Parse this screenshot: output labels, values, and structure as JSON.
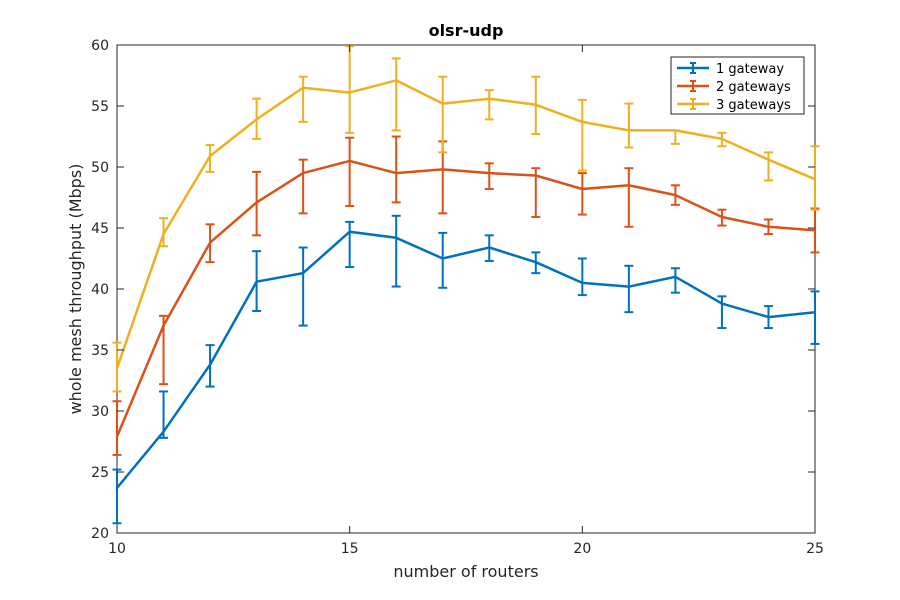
{
  "chart_data": {
    "type": "line",
    "title": "olsr-udp",
    "xlabel": "number of routers",
    "ylabel": "whole mesh throughput (Mbps)",
    "xlim": [
      10,
      25
    ],
    "ylim": [
      20,
      60
    ],
    "xticks": [
      10,
      15,
      20,
      25
    ],
    "yticks": [
      20,
      25,
      30,
      35,
      40,
      45,
      50,
      55,
      60
    ],
    "grid": false,
    "legend_position": "top-right",
    "x": [
      10,
      11,
      12,
      13,
      14,
      15,
      16,
      17,
      18,
      19,
      20,
      21,
      22,
      23,
      24,
      25
    ],
    "series": [
      {
        "name": "1 gateway",
        "color": "#0072BD",
        "values": [
          23.7,
          28.3,
          33.8,
          40.6,
          41.3,
          44.7,
          44.2,
          42.5,
          43.4,
          42.2,
          40.5,
          40.2,
          41.0,
          38.8,
          37.7,
          38.1
        ],
        "err_low": [
          20.8,
          27.8,
          32.0,
          38.2,
          37.0,
          41.8,
          40.2,
          40.1,
          42.3,
          41.3,
          39.5,
          38.1,
          39.7,
          36.8,
          36.8,
          35.5
        ],
        "err_high": [
          25.2,
          31.6,
          35.4,
          43.1,
          43.4,
          45.5,
          46.0,
          44.6,
          44.4,
          43.0,
          42.5,
          41.9,
          41.7,
          39.4,
          38.6,
          39.8
        ]
      },
      {
        "name": "2 gateways",
        "color": "#D95319",
        "values": [
          27.9,
          37.0,
          43.8,
          47.1,
          49.5,
          50.5,
          49.5,
          49.8,
          49.5,
          49.3,
          48.2,
          48.5,
          47.7,
          45.9,
          45.1,
          44.8
        ],
        "err_low": [
          26.4,
          32.2,
          42.2,
          44.4,
          46.2,
          46.8,
          47.1,
          46.2,
          48.2,
          45.9,
          46.1,
          45.1,
          46.9,
          45.2,
          44.5,
          43.0
        ],
        "err_high": [
          30.8,
          37.8,
          45.3,
          49.6,
          50.6,
          52.4,
          52.5,
          52.1,
          50.3,
          49.9,
          49.5,
          49.9,
          48.5,
          46.5,
          45.7,
          46.6
        ]
      },
      {
        "name": "3 gateways",
        "color": "#EDB120",
        "values": [
          33.5,
          44.5,
          50.9,
          53.9,
          56.5,
          56.1,
          57.1,
          55.2,
          55.6,
          55.1,
          53.7,
          53.0,
          53.0,
          52.3,
          50.6,
          49.0
        ],
        "err_low": [
          31.6,
          43.5,
          49.6,
          52.3,
          53.7,
          52.8,
          53.0,
          51.2,
          53.9,
          52.7,
          49.7,
          51.6,
          51.9,
          51.7,
          48.9,
          46.5
        ],
        "err_high": [
          35.6,
          45.8,
          51.8,
          55.6,
          57.4,
          59.9,
          58.9,
          57.4,
          56.3,
          57.4,
          55.5,
          55.2,
          53.0,
          52.8,
          51.2,
          51.7
        ]
      }
    ]
  }
}
